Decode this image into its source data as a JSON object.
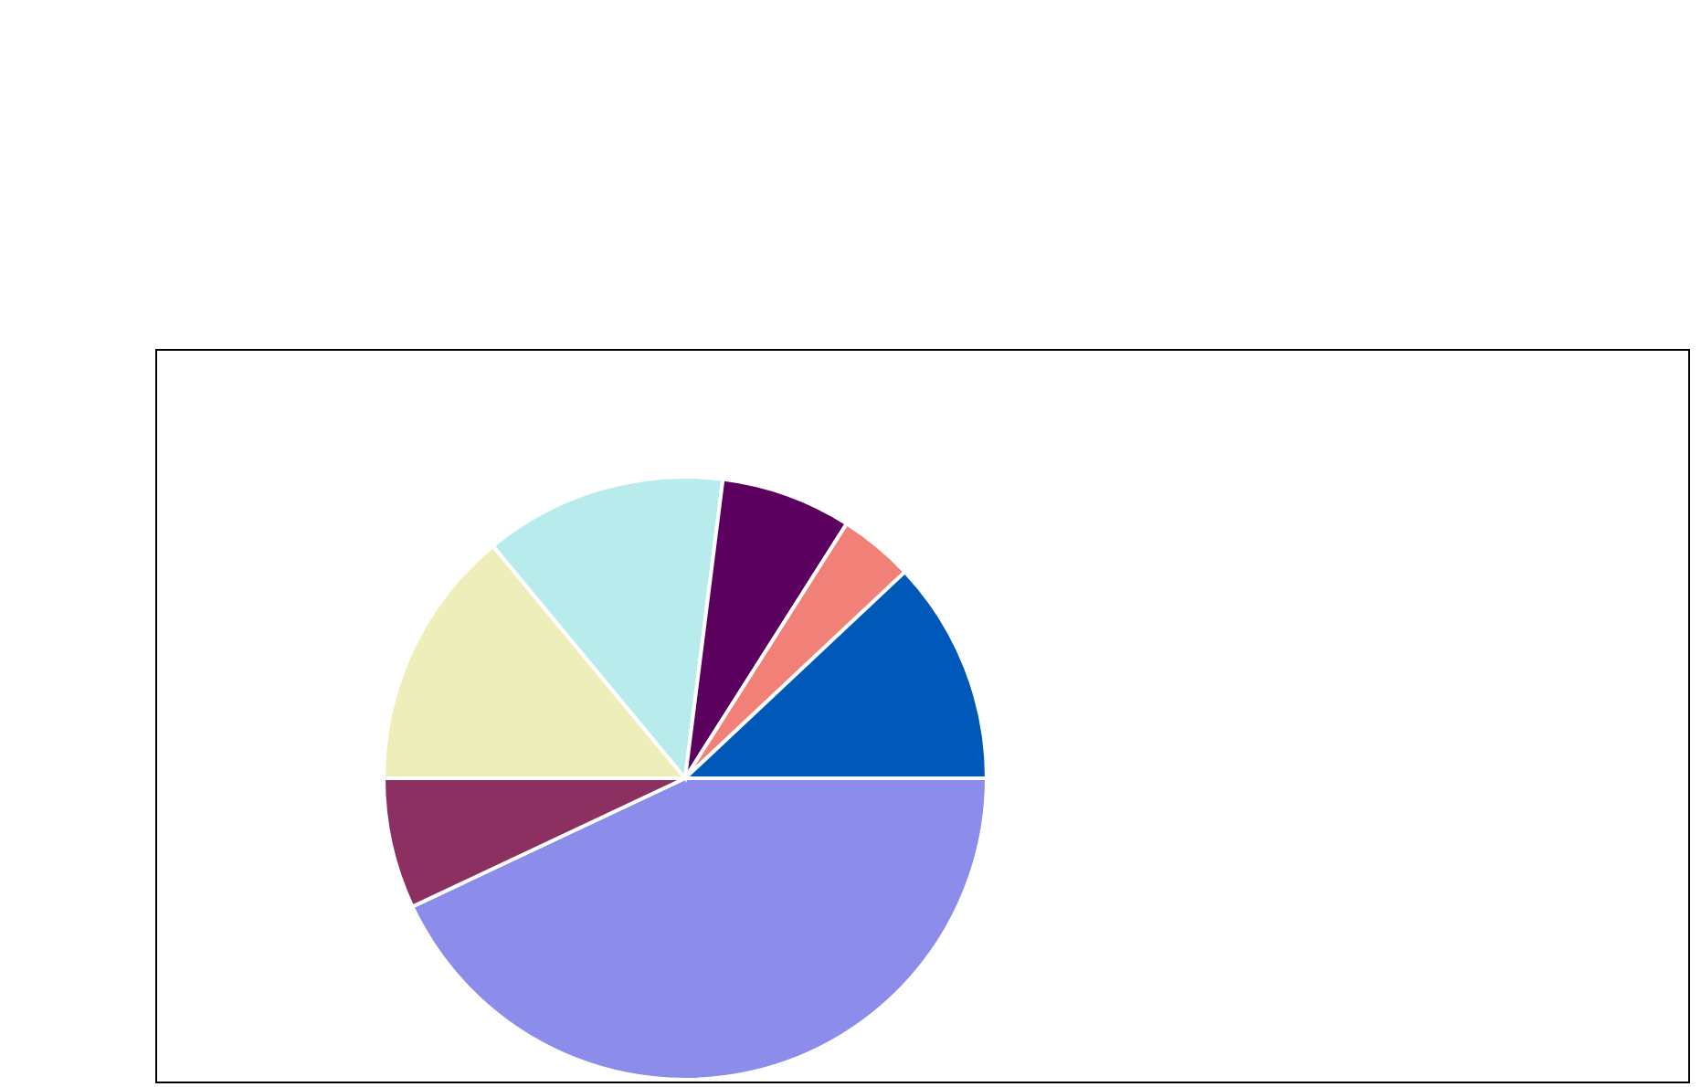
{
  "chart_data": {
    "type": "pie",
    "categories": [
      null,
      null,
      null,
      null,
      null,
      null,
      null
    ],
    "values": [
      43,
      7,
      14,
      13,
      7,
      4,
      12
    ],
    "colors": [
      "#8c8ceb",
      "#8b3060",
      "#eeeebb",
      "#b8ecec",
      "#5c0060",
      "#f08078",
      "#0058b8"
    ],
    "legend": false
  }
}
